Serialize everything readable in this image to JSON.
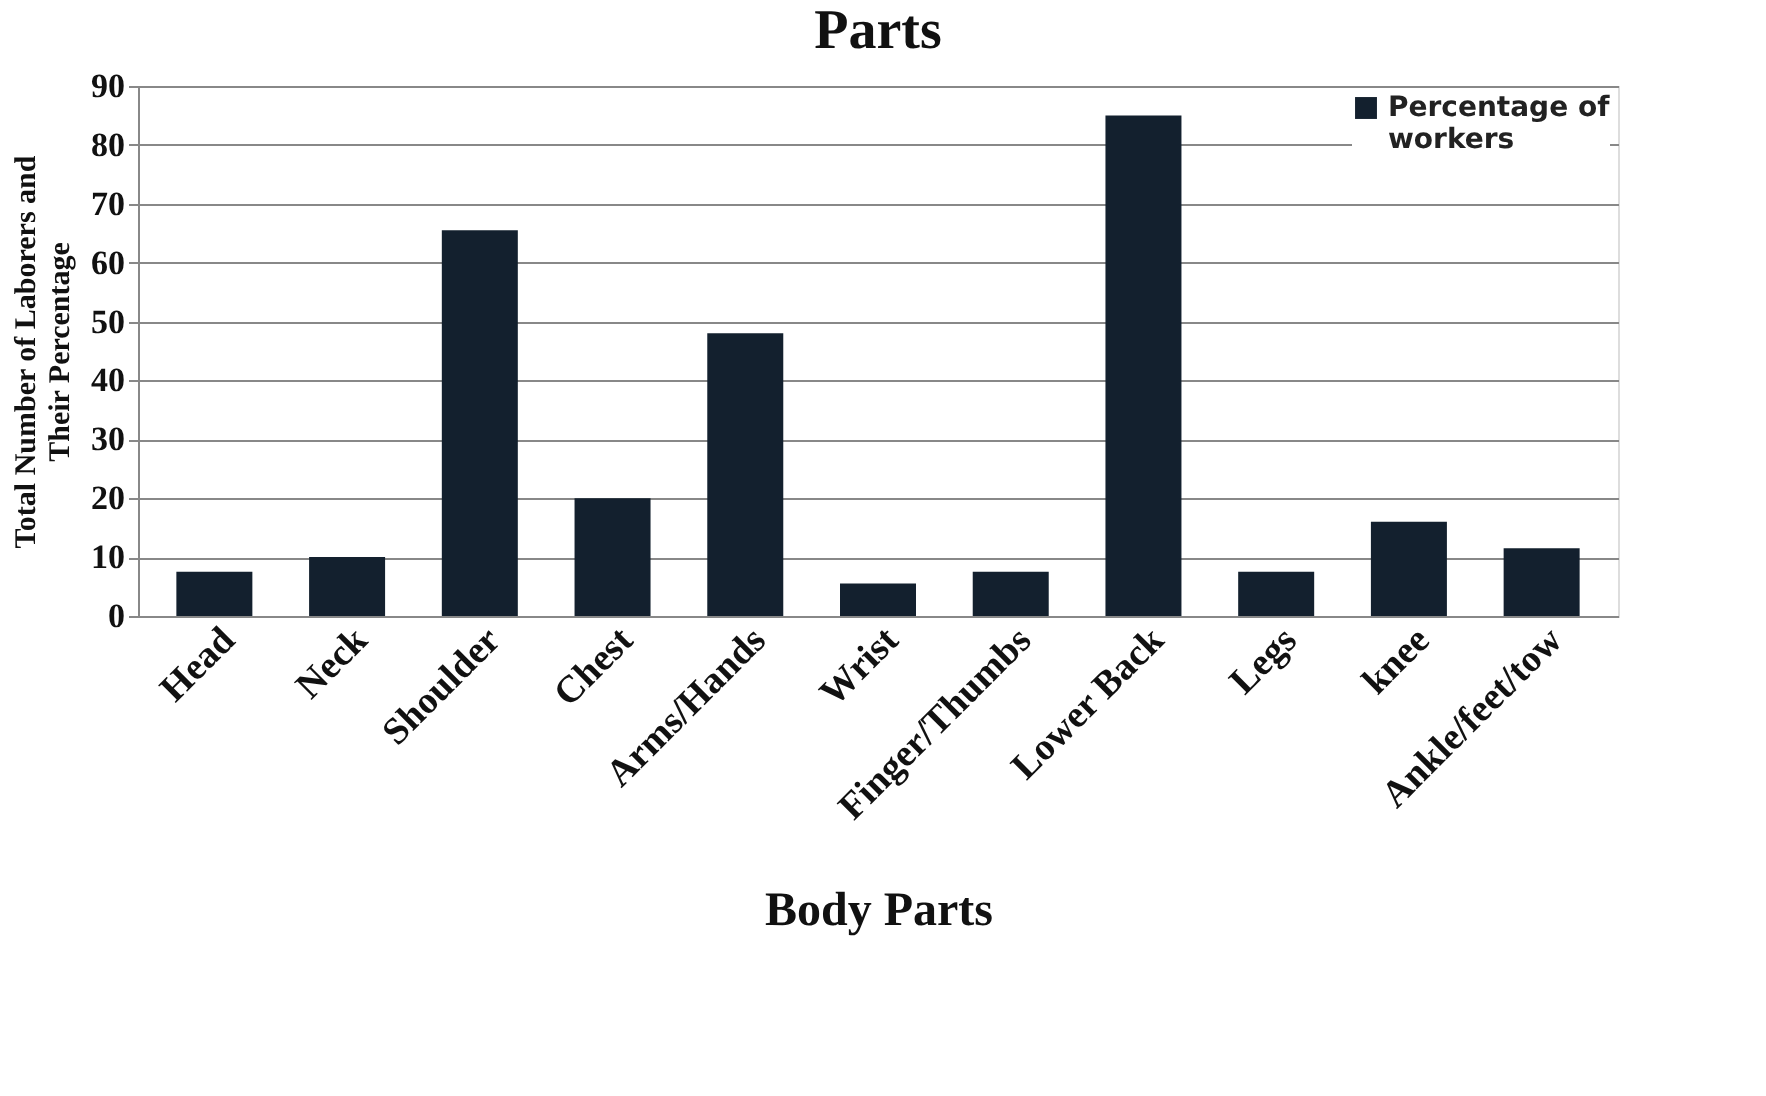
{
  "chart_data": {
    "type": "bar",
    "title": "Parts",
    "xlabel": "Body Parts",
    "ylabel": "Total Number of Laborers and Their Percentage",
    "categories": [
      "Head",
      "Neck",
      "Shoulder",
      "Chest",
      "Arms/Hands",
      "Wrist",
      "Finger/Thumbs",
      "Lower Back",
      "Legs",
      "knee",
      "Ankle/feet/tow"
    ],
    "series": [
      {
        "name": "Percentage of workers",
        "color": "#13202e",
        "values": [
          7.5,
          10,
          65.5,
          20,
          48,
          5.5,
          7.5,
          85,
          7.5,
          16,
          11.5
        ]
      }
    ],
    "ylim": [
      0,
      90
    ],
    "yticks": [
      0,
      10,
      20,
      30,
      40,
      50,
      60,
      70,
      80,
      90
    ],
    "grid": "y",
    "legend": "top right"
  }
}
